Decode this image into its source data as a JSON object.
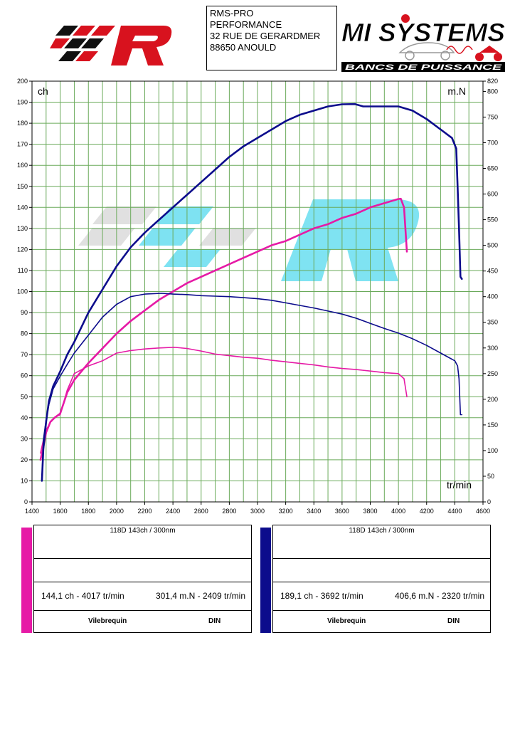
{
  "header": {
    "address_lines": [
      "RMS-PRO",
      "PERFORMANCE",
      "32 RUE DE GERARDMER",
      "88650 ANOULD"
    ],
    "logo_right_text": "MI SYSTEMS",
    "logo_right_tagline": "BANCS DE PUISSANCE"
  },
  "colors": {
    "run1": "#e61aa6",
    "run2": "#0c0c8c",
    "grid": "#6aaa5a",
    "logo_red": "#d8121e",
    "watermark": "#54d9ee"
  },
  "chart_data": {
    "type": "line",
    "title": "",
    "xlabel": "tr/min",
    "ylabel_left": "ch",
    "ylabel_right": "m.N",
    "xlim": [
      1400,
      4600
    ],
    "ylim_left": [
      0,
      200
    ],
    "ylim_right": [
      0,
      820
    ],
    "x_ticks": [
      1400,
      1600,
      1800,
      2000,
      2200,
      2400,
      2600,
      2800,
      3000,
      3200,
      3400,
      3600,
      3800,
      4000,
      4200,
      4400,
      4600
    ],
    "y_left_ticks": [
      0,
      10,
      20,
      30,
      40,
      50,
      60,
      70,
      80,
      90,
      100,
      110,
      120,
      130,
      140,
      150,
      160,
      170,
      180,
      190,
      200
    ],
    "y_right_ticks": [
      0,
      50,
      100,
      150,
      200,
      250,
      300,
      350,
      400,
      450,
      500,
      550,
      600,
      650,
      700,
      750,
      800,
      820
    ],
    "grid": true,
    "series": [
      {
        "name": "Puissance run 1",
        "axis": "left",
        "color_key": "run1",
        "x": [
          1460,
          1480,
          1500,
          1530,
          1560,
          1600,
          1650,
          1700,
          1800,
          1900,
          2000,
          2100,
          2200,
          2300,
          2400,
          2500,
          2600,
          2700,
          2800,
          2900,
          3000,
          3100,
          3200,
          3300,
          3400,
          3500,
          3600,
          3700,
          3800,
          3900,
          4000,
          4017,
          4040,
          4060
        ],
        "y": [
          20,
          26,
          33,
          38,
          40,
          42,
          52,
          58,
          66,
          73,
          80,
          86,
          91,
          96,
          100,
          104,
          107,
          110,
          113,
          116,
          119,
          122,
          124,
          127,
          130,
          132,
          135,
          137,
          140,
          142,
          144,
          144.1,
          140,
          119
        ]
      },
      {
        "name": "Couple run 1",
        "axis": "right",
        "color_key": "run1",
        "x": [
          1460,
          1480,
          1500,
          1530,
          1560,
          1600,
          1650,
          1700,
          1800,
          1900,
          2000,
          2100,
          2200,
          2300,
          2409,
          2500,
          2600,
          2700,
          2800,
          2900,
          3000,
          3100,
          3200,
          3300,
          3400,
          3500,
          3600,
          3700,
          3800,
          3900,
          4000,
          4040,
          4060
        ],
        "y": [
          95,
          120,
          140,
          155,
          165,
          170,
          218,
          250,
          265,
          275,
          290,
          295,
          298,
          300,
          301.4,
          299,
          294,
          288,
          285,
          282,
          280,
          276,
          273,
          270,
          267,
          263,
          260,
          258,
          255,
          252,
          250,
          240,
          205
        ]
      },
      {
        "name": "Puissance run 2",
        "axis": "left",
        "color_key": "run2",
        "x": [
          1470,
          1480,
          1500,
          1520,
          1550,
          1600,
          1650,
          1700,
          1800,
          1900,
          2000,
          2100,
          2200,
          2300,
          2400,
          2500,
          2600,
          2700,
          2800,
          2900,
          3000,
          3100,
          3200,
          3300,
          3400,
          3500,
          3600,
          3692,
          3750,
          3800,
          3900,
          4000,
          4100,
          4200,
          4300,
          4380,
          4410,
          4420,
          4430,
          4440,
          4450
        ],
        "y": [
          10,
          25,
          38,
          48,
          55,
          62,
          70,
          76,
          90,
          101,
          112,
          121,
          128,
          134,
          140,
          146,
          152,
          158,
          164,
          169,
          173,
          177,
          181,
          184,
          186,
          188,
          189,
          189.1,
          188,
          188,
          188,
          188,
          186,
          182,
          177,
          173,
          168,
          150,
          130,
          107,
          106
        ]
      },
      {
        "name": "Couple run 2",
        "axis": "right",
        "color_key": "run2",
        "x": [
          1470,
          1480,
          1500,
          1520,
          1550,
          1600,
          1650,
          1700,
          1800,
          1900,
          2000,
          2100,
          2200,
          2320,
          2400,
          2500,
          2600,
          2700,
          2800,
          2900,
          3000,
          3100,
          3200,
          3300,
          3400,
          3500,
          3600,
          3700,
          3800,
          3900,
          4000,
          4100,
          4200,
          4300,
          4400,
          4420,
          4430,
          4440,
          4450
        ],
        "y": [
          42,
          120,
          160,
          190,
          220,
          245,
          268,
          290,
          325,
          360,
          385,
          400,
          405,
          406.6,
          405,
          404,
          402,
          401,
          400,
          398,
          396,
          393,
          388,
          383,
          378,
          372,
          366,
          358,
          348,
          338,
          329,
          318,
          305,
          290,
          275,
          265,
          240,
          170,
          170
        ]
      }
    ],
    "annotations": []
  },
  "panels": [
    {
      "title": "118D 143ch / 300nm",
      "power_text": "144,1 ch - 4017 tr/min",
      "torque_text": "301,4 m.N - 2409 tr/min",
      "label_crank": "Vilebrequin",
      "label_std": "DIN"
    },
    {
      "title": "118D 143ch / 300nm",
      "power_text": "189,1 ch - 3692 tr/min",
      "torque_text": "406,6 m.N - 2320 tr/min",
      "label_crank": "Vilebrequin",
      "label_std": "DIN"
    }
  ]
}
